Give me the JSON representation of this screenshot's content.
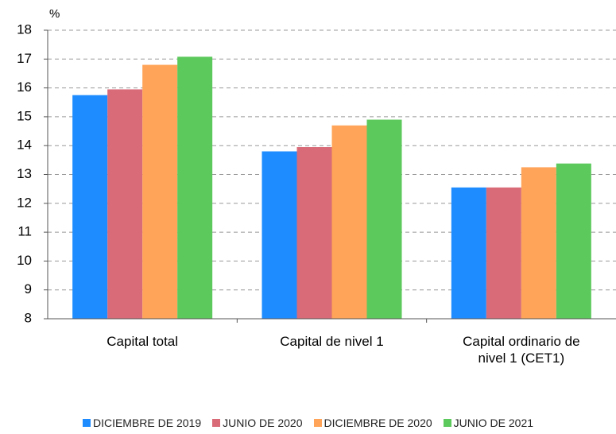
{
  "chart_data": {
    "type": "bar",
    "y_unit": "%",
    "categories": [
      "Capital total",
      "Capital de nivel 1",
      "Capital ordinario de nivel 1 (CET1)"
    ],
    "series": [
      {
        "name": "DICIEMBRE DE 2019",
        "color": "#1e8cff",
        "values": [
          15.75,
          13.8,
          12.55
        ]
      },
      {
        "name": "JUNIO DE 2020",
        "color": "#d96b78",
        "values": [
          15.95,
          13.95,
          12.55
        ]
      },
      {
        "name": "DICIEMBRE DE 2020",
        "color": "#ffa458",
        "values": [
          16.8,
          14.7,
          13.25
        ]
      },
      {
        "name": "JUNIO DE 2021",
        "color": "#5cc95c",
        "values": [
          17.08,
          14.9,
          13.38
        ]
      }
    ],
    "ylim": [
      8,
      18
    ],
    "yticks": [
      8,
      9,
      10,
      11,
      12,
      13,
      14,
      15,
      16,
      17,
      18
    ],
    "grid": true
  }
}
